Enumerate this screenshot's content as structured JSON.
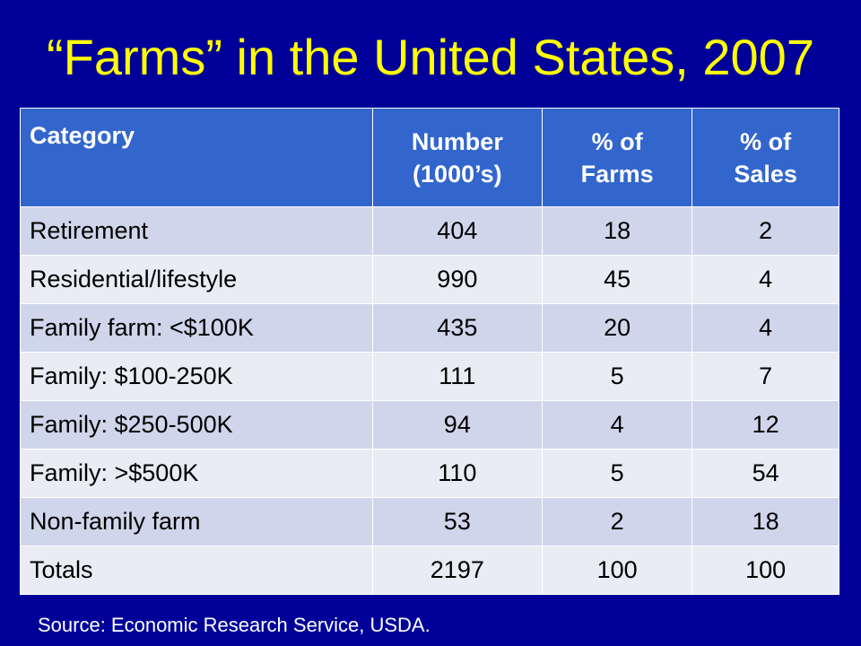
{
  "title": "“Farms” in the United States, 2007",
  "colors": {
    "background": "#000099",
    "title": "#ffff00",
    "header_fill": "#3366cc",
    "row_odd": "#cfd5ea",
    "row_even": "#e9ebf5"
  },
  "table": {
    "headers": {
      "category": "Category",
      "number_line1": "Number",
      "number_line2": "(1000’s)",
      "farms_line1": "% of",
      "farms_line2": "Farms",
      "sales_line1": "% of",
      "sales_line2": "Sales"
    },
    "rows": [
      {
        "category": "Retirement",
        "number": "404",
        "pct_farms": "18",
        "pct_sales": "2"
      },
      {
        "category": "Residential/lifestyle",
        "number": "990",
        "pct_farms": "45",
        "pct_sales": "4"
      },
      {
        "category": "Family farm: <$100K",
        "number": "435",
        "pct_farms": "20",
        "pct_sales": "4"
      },
      {
        "category": "Family: $100-250K",
        "number": "111",
        "pct_farms": "5",
        "pct_sales": "7"
      },
      {
        "category": "Family: $250-500K",
        "number": "94",
        "pct_farms": "4",
        "pct_sales": "12"
      },
      {
        "category": "Family: >$500K",
        "number": "110",
        "pct_farms": "5",
        "pct_sales": "54"
      },
      {
        "category": "Non-family farm",
        "number": "53",
        "pct_farms": "2",
        "pct_sales": "18"
      },
      {
        "category": "Totals",
        "number": "2197",
        "pct_farms": "100",
        "pct_sales": "100"
      }
    ]
  },
  "source": "Source: Economic Research Service, USDA."
}
